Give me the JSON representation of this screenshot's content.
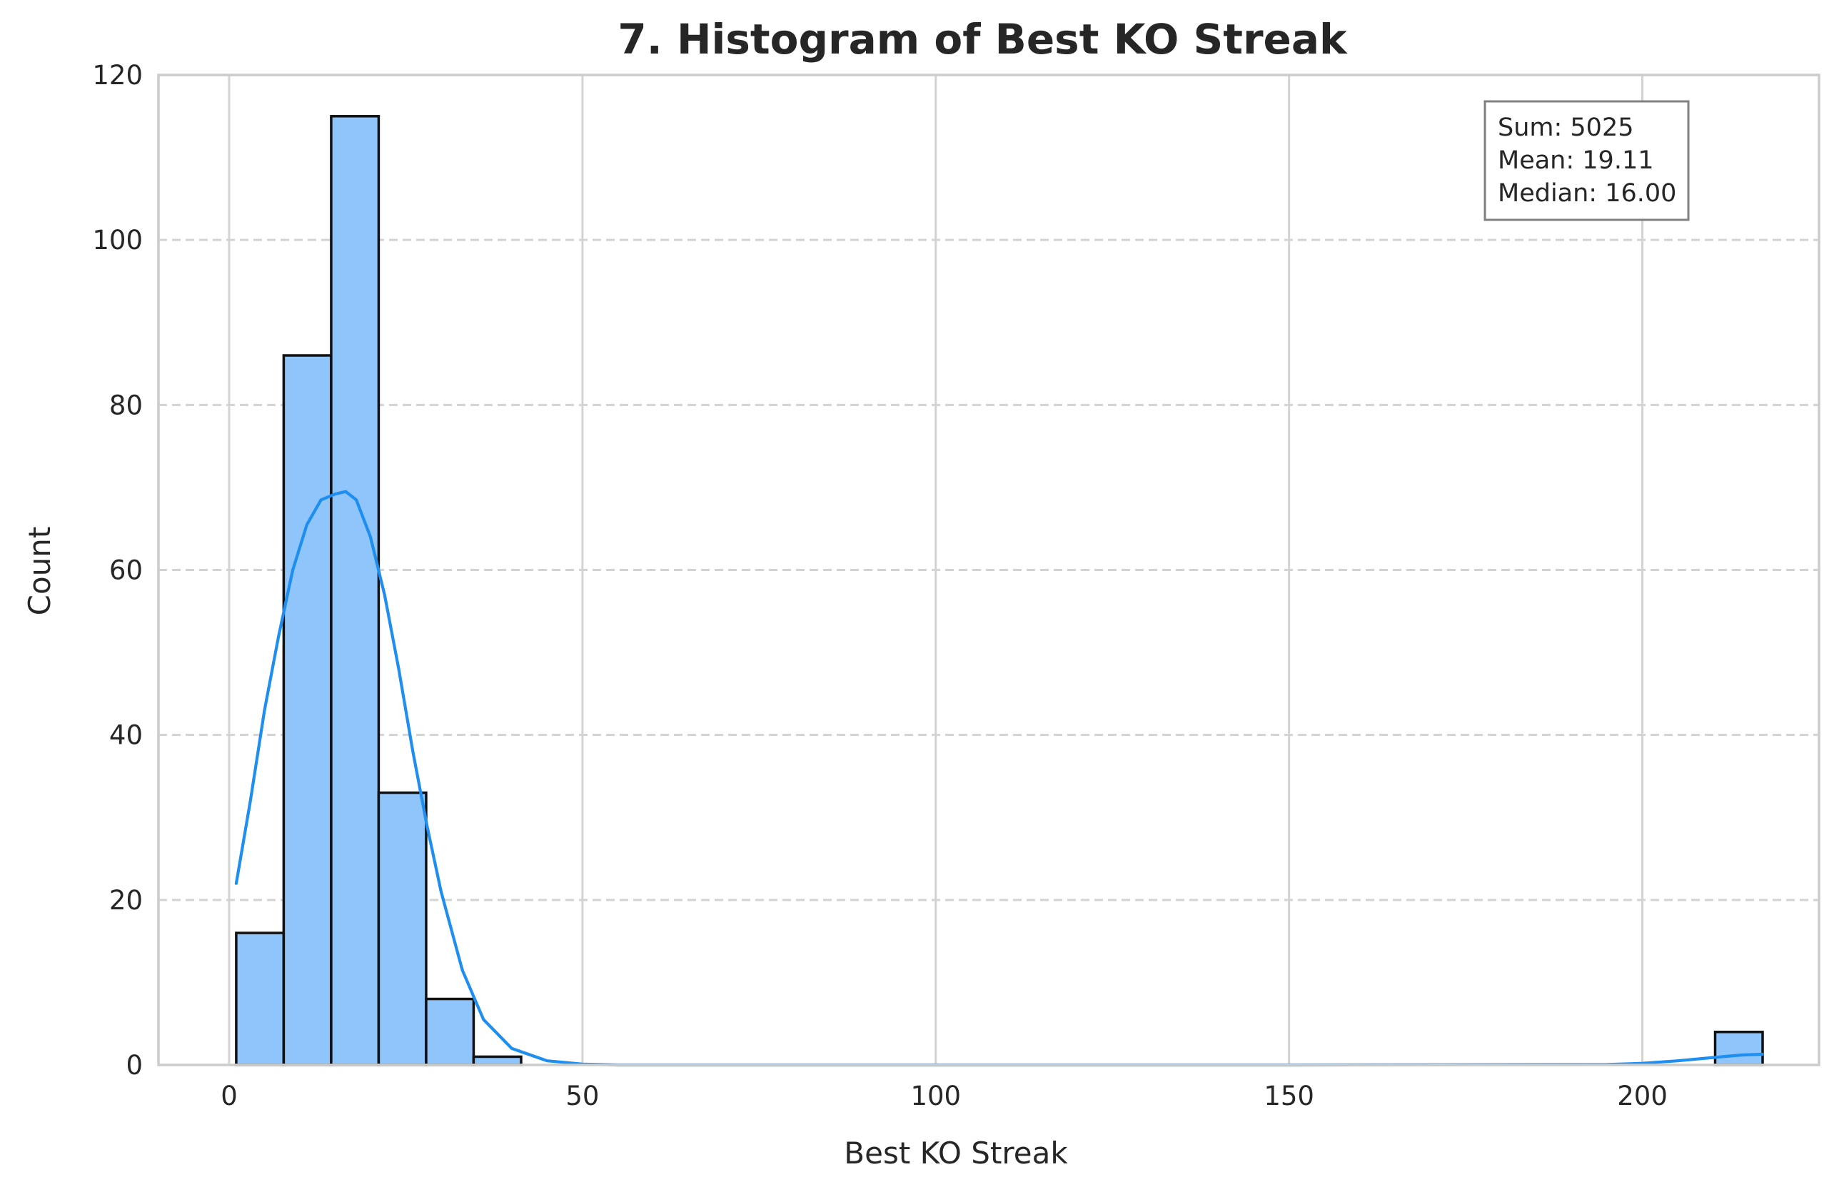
{
  "chart_data": {
    "type": "bar",
    "title": "7. Histogram of Best KO Streak",
    "xlabel": "Best KO Streak",
    "ylabel": "Count",
    "xlim": [
      -10,
      225
    ],
    "ylim": [
      0,
      120
    ],
    "x_ticks": [
      0,
      50,
      100,
      150,
      200
    ],
    "y_ticks": [
      0,
      20,
      40,
      60,
      80,
      100,
      120
    ],
    "grid": true,
    "bin_width": 6.72,
    "bins": [
      {
        "start": 1.0,
        "count": 16
      },
      {
        "start": 7.72,
        "count": 86
      },
      {
        "start": 14.44,
        "count": 115
      },
      {
        "start": 21.16,
        "count": 33
      },
      {
        "start": 27.88,
        "count": 8
      },
      {
        "start": 34.6,
        "count": 1
      },
      {
        "start": 210.3,
        "count": 4
      }
    ],
    "kde": {
      "x": [
        1,
        3,
        5,
        7,
        9,
        11,
        13,
        15,
        16.5,
        18,
        20,
        22,
        24,
        26,
        28,
        30,
        33,
        36,
        40,
        45,
        50,
        55,
        60,
        100,
        150,
        195,
        200,
        205,
        210,
        214,
        217
      ],
      "y": [
        22,
        32,
        43,
        52,
        60,
        65.5,
        68.5,
        69.2,
        69.5,
        68.5,
        64,
        57,
        48,
        38,
        29,
        21,
        11.5,
        5.5,
        2,
        0.5,
        0.1,
        0,
        0,
        0,
        0,
        0.05,
        0.2,
        0.5,
        0.9,
        1.2,
        1.3
      ]
    },
    "stats_box": {
      "position": "top-right",
      "lines": [
        "Sum: 5025",
        "Mean: 19.11",
        "Median: 16.00"
      ]
    },
    "colors": {
      "bar_fill": "#90c5fb",
      "bar_edge": "#111111",
      "kde_line": "#1e8ef0",
      "grid": "#d3d3d3",
      "axis_frame": "#cccccc",
      "stats_border": "#808080"
    }
  }
}
